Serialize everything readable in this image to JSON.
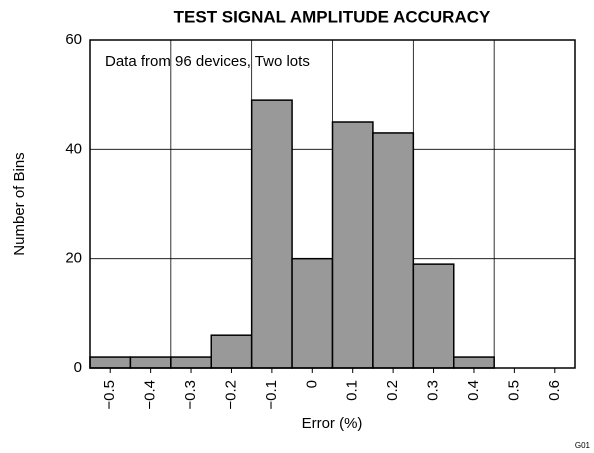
{
  "chart_data": {
    "type": "histogram",
    "title": "TEST SIGNAL AMPLITUDE ACCURACY",
    "annotation": "Data from 96 devices, Two lots",
    "xlabel": "Error (%)",
    "ylabel": "Number of Bins",
    "footnote": "G01",
    "bins": [
      -0.55,
      -0.45,
      -0.35,
      -0.25,
      -0.15,
      -0.05,
      0.05,
      0.15,
      0.25,
      0.35,
      0.45,
      0.55,
      0.65
    ],
    "values": [
      2,
      2,
      2,
      6,
      49,
      20,
      45,
      43,
      19,
      2,
      0,
      0
    ],
    "color": "#999999",
    "xlim": [
      -0.55,
      0.65
    ],
    "xticks": [
      {
        "value": -0.5,
        "label": "−0.5"
      },
      {
        "value": -0.4,
        "label": "−0.4"
      },
      {
        "value": -0.3,
        "label": "−0.3"
      },
      {
        "value": -0.2,
        "label": "−0.2"
      },
      {
        "value": -0.1,
        "label": "−0.1"
      },
      0,
      0.1,
      0.2,
      0.3,
      0.4,
      0.5,
      0.6
    ],
    "ylim": [
      0,
      60
    ],
    "yticks": [
      0,
      20,
      40,
      60
    ],
    "grid": true
  }
}
